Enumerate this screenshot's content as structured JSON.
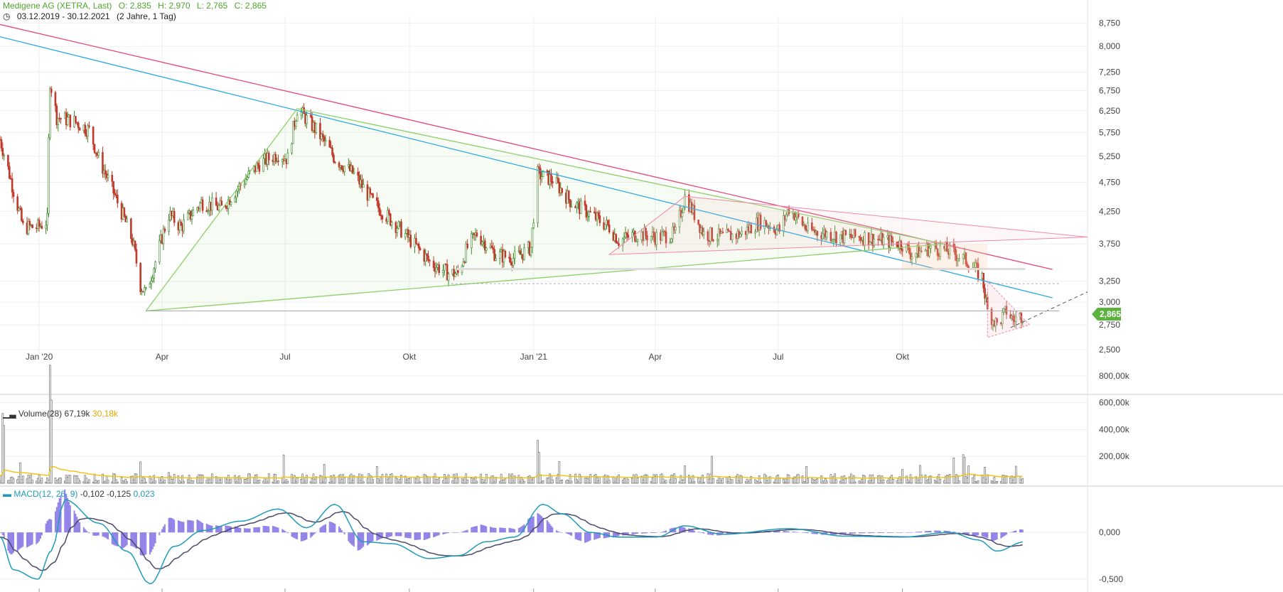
{
  "header": {
    "title": "Medigene AG (XETRA, Last)",
    "open": "O: 2,835",
    "high": "H: 2,970",
    "low": "L: 2,765",
    "close": "C: 2,865",
    "range": "03.12.2019 - 30.12.2021",
    "range_note": "(2 Jahre, 1 Tag)"
  },
  "colors": {
    "up": "#3d8a2c",
    "down": "#c0392b",
    "pink_line": "#e64577",
    "blue_line": "#29a8e0",
    "green_line": "#8cd06a",
    "volume_avg": "#f0c419",
    "macd_line": "#1f9bb8",
    "signal_line": "#4a4a6a",
    "macd_hist": "#6f5ce0",
    "price_badge": "#5bb33d"
  },
  "price_axis": {
    "ticks": [
      "8,750",
      "8,000",
      "7,250",
      "6,750",
      "6,250",
      "5,750",
      "5,250",
      "4,750",
      "4,250",
      "3,750",
      "3,250",
      "3,000",
      "2,750",
      "2,500"
    ],
    "last_price": "2,865"
  },
  "time_axis": {
    "ticks": [
      "Jan '20",
      "Apr",
      "Jul",
      "Okt",
      "Jan '21",
      "Apr",
      "Jul",
      "Okt"
    ]
  },
  "volume": {
    "label": "Volume(28)",
    "value": "67,19k",
    "avg": "30,18k",
    "ticks": [
      "800,00k",
      "600,00k",
      "400,00k",
      "200,00k"
    ]
  },
  "macd": {
    "label": "MACD(12, 26, 9)",
    "macd_value": "-0,102",
    "signal_value": "-0,125",
    "hist_value": "0,023",
    "ticks": [
      "0,000",
      "-0,500"
    ]
  },
  "chart_data": {
    "type": "candlestick",
    "title": "Medigene AG (XETRA, Last)",
    "y_scale": "log",
    "ylim": [
      2.5,
      9.0
    ],
    "xlim": [
      "2019-12-03",
      "2022-02-15"
    ],
    "series": [
      {
        "name": "Medigene AG",
        "close_anchors": [
          [
            "2019-12-03",
            5.6
          ],
          [
            "2019-12-13",
            4.6
          ],
          [
            "2019-12-20",
            4.0
          ],
          [
            "2019-12-31",
            4.0
          ],
          [
            "2020-01-07",
            4.1
          ],
          [
            "2020-01-09",
            7.0
          ],
          [
            "2020-01-14",
            6.1
          ],
          [
            "2020-01-27",
            6.0
          ],
          [
            "2020-02-07",
            5.8
          ],
          [
            "2020-02-14",
            5.2
          ],
          [
            "2020-02-28",
            4.4
          ],
          [
            "2020-03-10",
            3.8
          ],
          [
            "2020-03-16",
            3.2
          ],
          [
            "2020-03-20",
            3.1
          ],
          [
            "2020-03-27",
            3.5
          ],
          [
            "2020-04-06",
            4.2
          ],
          [
            "2020-04-15",
            4.0
          ],
          [
            "2020-04-30",
            4.4
          ],
          [
            "2020-05-15",
            4.3
          ],
          [
            "2020-05-29",
            4.7
          ],
          [
            "2020-06-12",
            5.1
          ],
          [
            "2020-06-26",
            5.3
          ],
          [
            "2020-07-03",
            5.2
          ],
          [
            "2020-07-10",
            6.3
          ],
          [
            "2020-07-24",
            5.8
          ],
          [
            "2020-08-07",
            5.2
          ],
          [
            "2020-08-21",
            4.9
          ],
          [
            "2020-09-04",
            4.4
          ],
          [
            "2020-09-18",
            4.1
          ],
          [
            "2020-10-02",
            3.8
          ],
          [
            "2020-10-16",
            3.5
          ],
          [
            "2020-10-30",
            3.35
          ],
          [
            "2020-11-06",
            3.35
          ],
          [
            "2020-11-13",
            3.7
          ],
          [
            "2020-11-20",
            3.9
          ],
          [
            "2020-12-04",
            3.6
          ],
          [
            "2020-12-18",
            3.55
          ],
          [
            "2020-12-30",
            3.7
          ],
          [
            "2021-01-04",
            4.9
          ],
          [
            "2021-01-15",
            4.8
          ],
          [
            "2021-01-29",
            4.4
          ],
          [
            "2021-02-12",
            4.2
          ],
          [
            "2021-02-26",
            4.0
          ],
          [
            "2021-03-05",
            3.8
          ],
          [
            "2021-03-19",
            3.9
          ],
          [
            "2021-04-02",
            3.85
          ],
          [
            "2021-04-16",
            3.9
          ],
          [
            "2021-04-23",
            4.5
          ],
          [
            "2021-05-07",
            3.9
          ],
          [
            "2021-05-21",
            3.85
          ],
          [
            "2021-06-04",
            3.9
          ],
          [
            "2021-06-18",
            4.1
          ],
          [
            "2021-07-02",
            3.95
          ],
          [
            "2021-07-09",
            4.3
          ],
          [
            "2021-07-23",
            3.95
          ],
          [
            "2021-08-06",
            3.9
          ],
          [
            "2021-08-20",
            3.85
          ],
          [
            "2021-09-03",
            3.85
          ],
          [
            "2021-09-17",
            3.8
          ],
          [
            "2021-10-01",
            3.75
          ],
          [
            "2021-10-08",
            3.6
          ],
          [
            "2021-10-22",
            3.7
          ],
          [
            "2021-11-05",
            3.65
          ],
          [
            "2021-11-19",
            3.5
          ],
          [
            "2021-11-29",
            3.3
          ],
          [
            "2021-12-03",
            2.9
          ],
          [
            "2021-12-10",
            2.75
          ],
          [
            "2021-12-17",
            2.9
          ],
          [
            "2021-12-22",
            2.8
          ],
          [
            "2021-12-30",
            2.865
          ]
        ]
      }
    ],
    "last": {
      "open": 2.835,
      "high": 2.97,
      "low": 2.765,
      "close": 2.865
    },
    "trendlines": [
      {
        "name": "pink",
        "points": [
          [
            "2019-12-03",
            8.7
          ],
          [
            "2022-01-20",
            3.4
          ]
        ]
      },
      {
        "name": "blue",
        "points": [
          [
            "2019-12-03",
            8.3
          ],
          [
            "2022-01-20",
            3.05
          ]
        ]
      },
      {
        "name": "green-upper",
        "points": [
          [
            "2020-03-20",
            2.9
          ],
          [
            "2020-07-10",
            6.3
          ]
        ]
      },
      {
        "name": "green-diagonal",
        "points": [
          [
            "2020-07-10",
            6.3
          ],
          [
            "2021-11-01",
            3.75
          ]
        ]
      },
      {
        "name": "green-base",
        "points": [
          [
            "2020-03-20",
            2.9
          ],
          [
            "2021-11-01",
            3.75
          ]
        ]
      }
    ],
    "volume": {
      "label": "Volume(28)",
      "ylim": [
        0,
        900
      ],
      "unit": "k",
      "spikes": [
        [
          "2019-12-05",
          520
        ],
        [
          "2019-12-06",
          430
        ],
        [
          "2020-01-09",
          880
        ],
        [
          "2020-01-10",
          620
        ],
        [
          "2020-03-16",
          160
        ],
        [
          "2021-01-04",
          320
        ],
        [
          "2021-01-05",
          230
        ],
        [
          "2021-04-23",
          130
        ],
        [
          "2021-12-01",
          120
        ]
      ],
      "baseline": 40
    },
    "macd": {
      "label": "MACD(12, 26, 9)",
      "ylim": [
        -0.6,
        0.45
      ],
      "macd_anchors": [
        [
          "2019-12-03",
          -0.05
        ],
        [
          "2019-12-13",
          -0.4
        ],
        [
          "2019-12-31",
          -0.5
        ],
        [
          "2020-01-10",
          -0.2
        ],
        [
          "2020-01-20",
          0.35
        ],
        [
          "2020-02-14",
          0.1
        ],
        [
          "2020-03-06",
          -0.2
        ],
        [
          "2020-03-23",
          -0.55
        ],
        [
          "2020-04-10",
          -0.15
        ],
        [
          "2020-05-01",
          0.02
        ],
        [
          "2020-05-29",
          0.12
        ],
        [
          "2020-06-26",
          0.25
        ],
        [
          "2020-07-17",
          0.05
        ],
        [
          "2020-08-07",
          0.3
        ],
        [
          "2020-08-28",
          -0.1
        ],
        [
          "2020-09-18",
          -0.12
        ],
        [
          "2020-10-16",
          -0.28
        ],
        [
          "2020-11-06",
          -0.25
        ],
        [
          "2020-11-27",
          -0.1
        ],
        [
          "2020-12-18",
          -0.05
        ],
        [
          "2021-01-08",
          0.3
        ],
        [
          "2021-01-22",
          0.2
        ],
        [
          "2021-02-12",
          0.0
        ],
        [
          "2021-03-05",
          -0.05
        ],
        [
          "2021-04-02",
          -0.05
        ],
        [
          "2021-04-23",
          0.07
        ],
        [
          "2021-05-21",
          -0.02
        ],
        [
          "2021-07-09",
          0.04
        ],
        [
          "2021-08-20",
          -0.04
        ],
        [
          "2021-10-01",
          -0.05
        ],
        [
          "2021-11-05",
          0.0
        ],
        [
          "2021-11-26",
          -0.08
        ],
        [
          "2021-12-10",
          -0.2
        ],
        [
          "2021-12-30",
          -0.102
        ]
      ]
    }
  }
}
